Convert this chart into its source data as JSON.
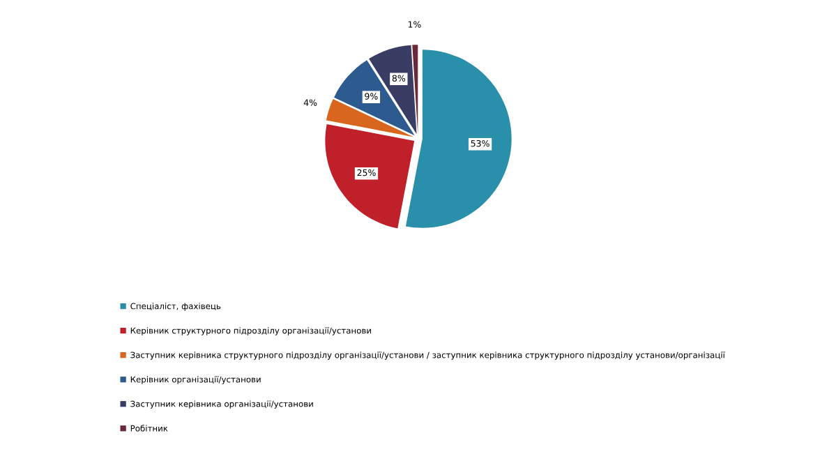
{
  "chart_data": {
    "type": "pie",
    "categories": [
      "Спеціаліст, фахівець",
      "Керівник структурного підрозділу організації/установи",
      "Заступник керівника структурного підрозділу організації/установи / заступник керівника структурного підрозділу установи/організації",
      "Керівник організації/установи",
      "Заступник керівника організації/установи",
      "Робітник"
    ],
    "values": [
      53,
      25,
      4,
      9,
      8,
      1
    ],
    "value_labels": [
      "53%",
      "25%",
      "4%",
      "9%",
      "8%",
      "1%"
    ],
    "colors": [
      "#2a8fab",
      "#c0202a",
      "#d9661e",
      "#2e5b8f",
      "#3a3d63",
      "#6b2a3a"
    ],
    "legend": "bottom"
  }
}
